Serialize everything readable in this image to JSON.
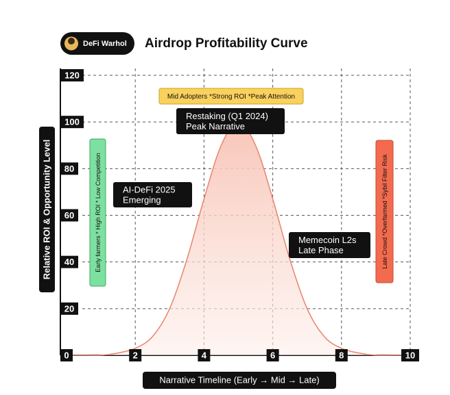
{
  "chart_data": {
    "type": "line",
    "brand": "DeFi Warhol",
    "title": "Airdrop Profitability Curve",
    "x_label": "Narrative Timeline (Early → Mid → Late)",
    "y_label": "Relative ROI & Opportunity Level",
    "x": [
      0,
      0.5,
      1,
      1.5,
      2,
      2.5,
      3,
      3.5,
      4,
      4.5,
      5,
      5.5,
      6,
      6.5,
      7,
      7.5,
      8,
      8.5,
      9,
      9.5,
      10
    ],
    "series": [
      {
        "color": "#e8836e",
        "values": [
          0,
          0,
          0,
          1,
          3,
          8,
          20,
          41,
          67,
          90,
          100,
          90,
          67,
          41,
          20,
          8,
          3,
          1,
          0,
          0,
          0
        ]
      }
    ],
    "xlim": [
      0,
      10
    ],
    "xticks": [
      0,
      2,
      4,
      6,
      8,
      10
    ],
    "ylim": [
      0,
      120
    ],
    "yticks": [
      20,
      40,
      60,
      80,
      100,
      120
    ],
    "grid": true,
    "annotations": [
      {
        "lines": [
          "Mid Adopters *Strong ROI *Peak Attention"
        ],
        "color": "#f9d15c"
      },
      {
        "lines": [
          "Restaking (Q1 2024)",
          "Peak Narrative"
        ],
        "color": "#111111"
      },
      {
        "lines": [
          "AI-DeFi 2025",
          "Emerging"
        ],
        "color": "#111111"
      },
      {
        "lines": [
          "Memecoin L2s",
          "Late Phase"
        ],
        "color": "#111111"
      },
      {
        "lines": [
          "Early farmers * High ROI * Low Competition"
        ],
        "color": "#7ee0a0"
      },
      {
        "lines": [
          "Late Crowd *Overfarmed *Sybil Filter Risk"
        ],
        "color": "#f26b4e"
      }
    ]
  }
}
